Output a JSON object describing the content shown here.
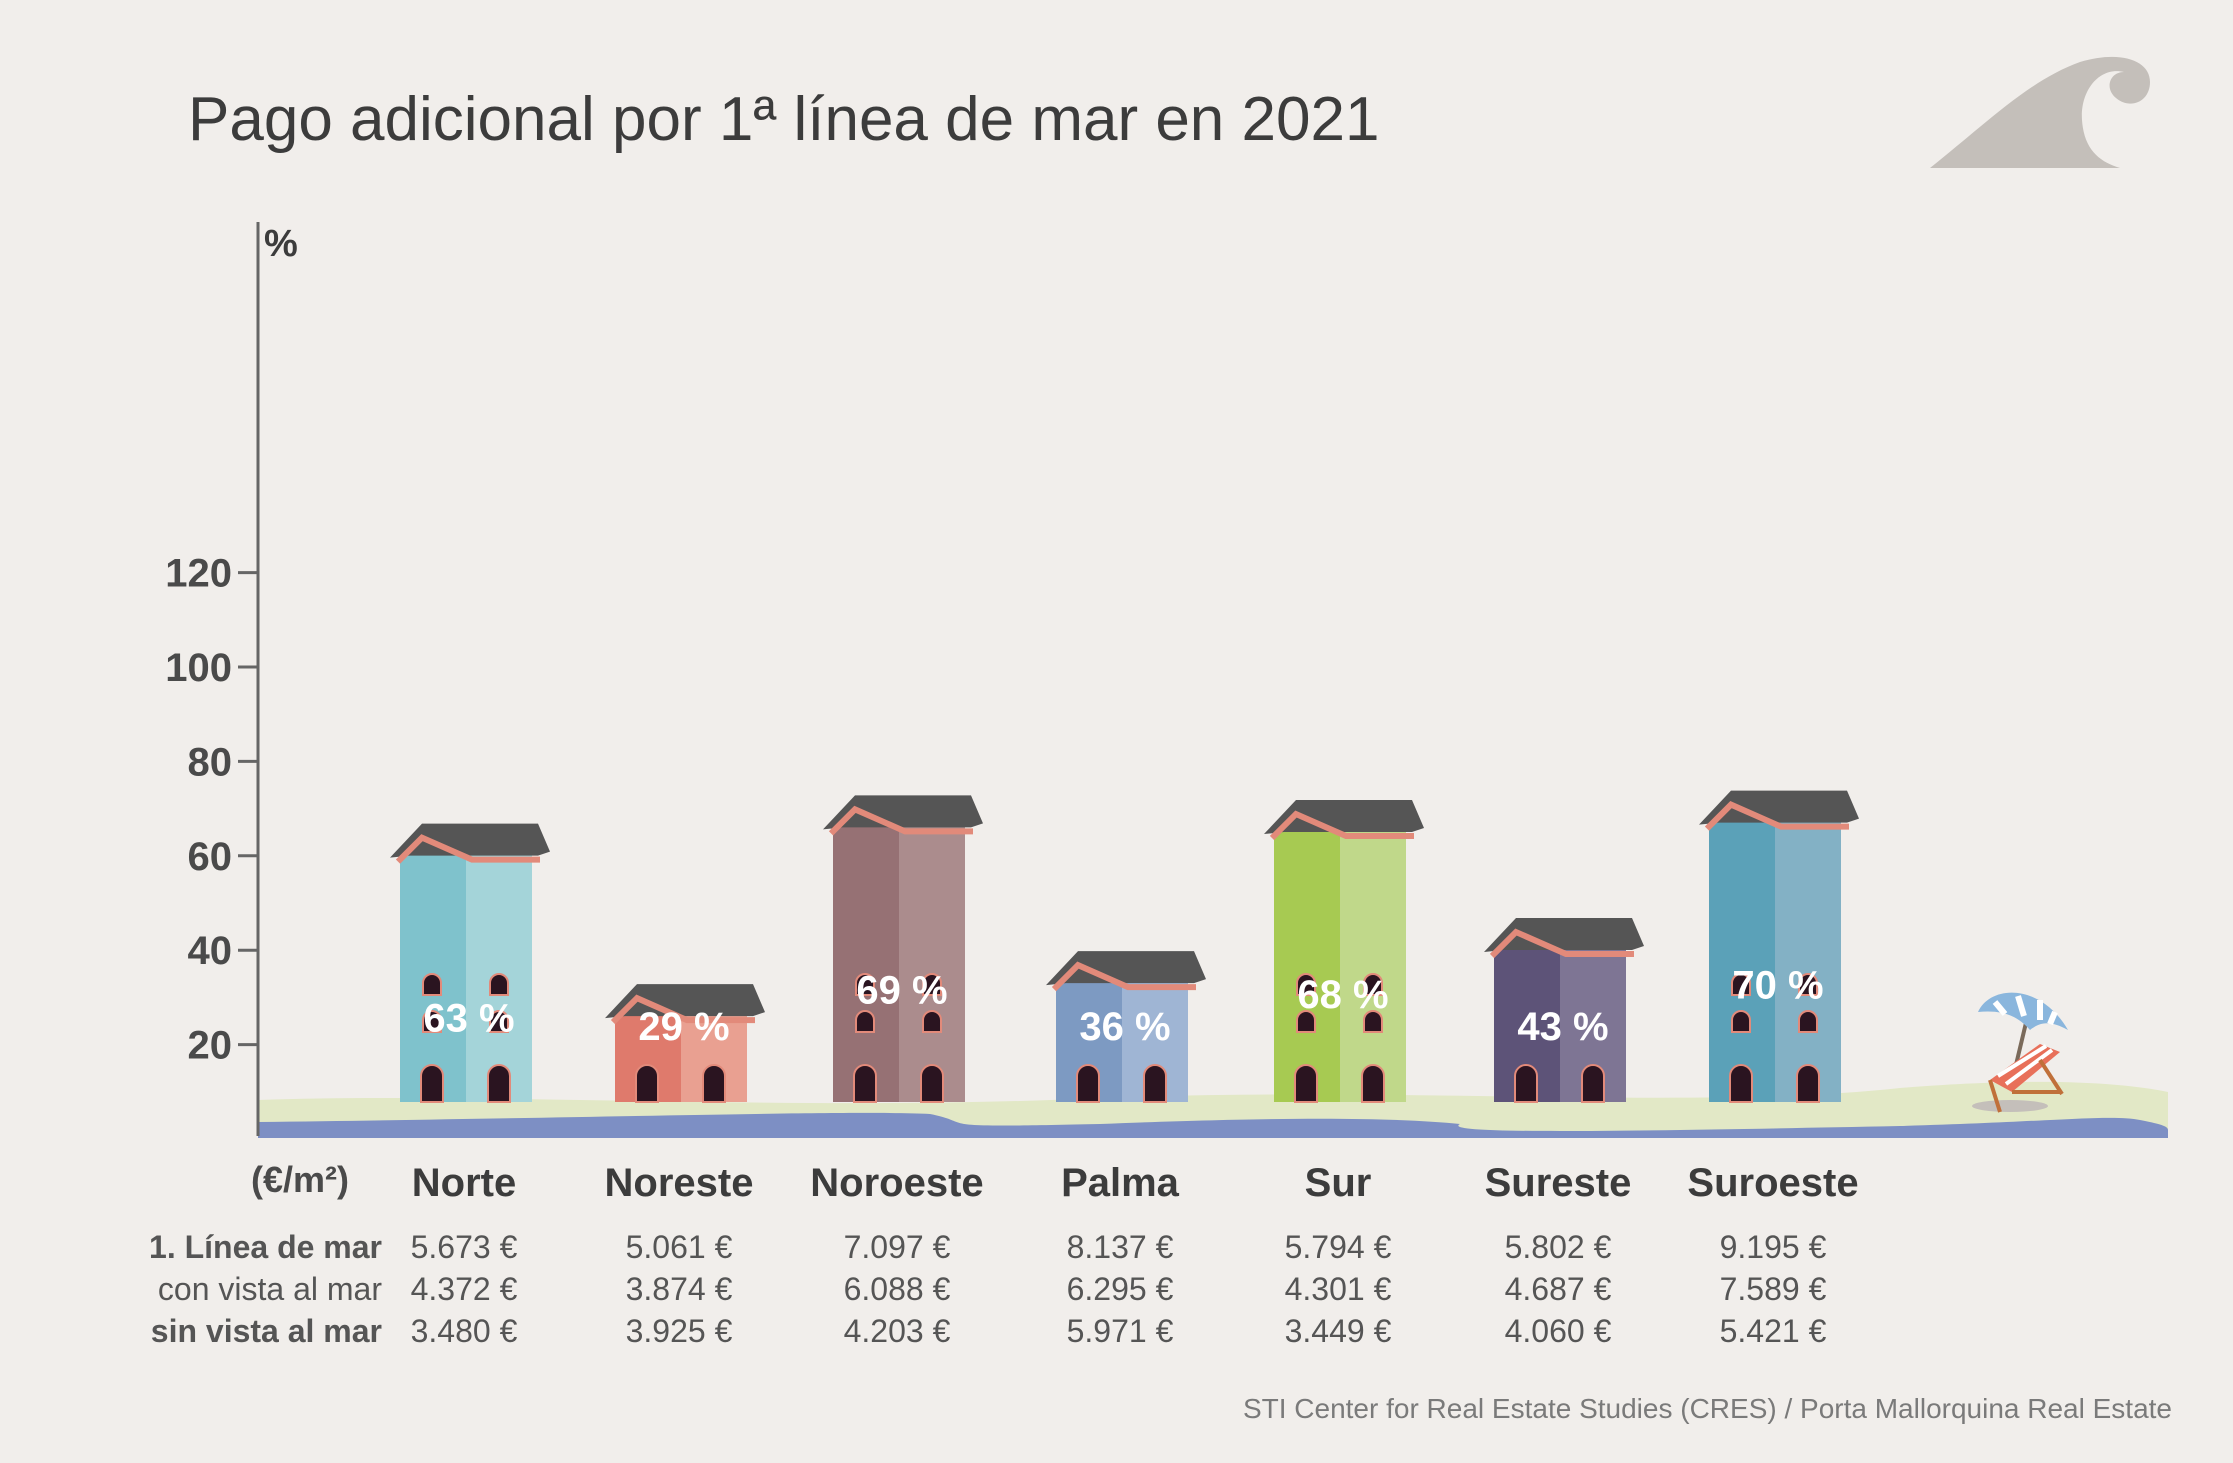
{
  "chart_data": {
    "type": "bar",
    "title": "Pago adicional por 1ª línea de mar en 2021",
    "ylabel": "%",
    "ylim": [
      0,
      130
    ],
    "yticks": [
      20,
      40,
      60,
      80,
      100,
      120
    ],
    "categories": [
      "Norte",
      "Noreste",
      "Noroeste",
      "Palma",
      "Sur",
      "Sureste",
      "Suroeste"
    ],
    "values": [
      63,
      29,
      69,
      36,
      68,
      43,
      70
    ],
    "value_labels": [
      "63 %",
      "29 %",
      "69 %",
      "36 %",
      "68 %",
      "43 %",
      "70 %"
    ],
    "bar_colors": [
      {
        "dark": "#7fc2cc",
        "light": "#a4d4d9"
      },
      {
        "dark": "#df7a6c",
        "light": "#e9a091"
      },
      {
        "dark": "#967174",
        "light": "#ab8c8d"
      },
      {
        "dark": "#7d9ac2",
        "light": "#9fb5d4"
      },
      {
        "dark": "#a7ca52",
        "light": "#c0d88a"
      },
      {
        "dark": "#5d5378",
        "light": "#7e7594"
      },
      {
        "dark": "#5ba1b8",
        "light": "#83b1c5"
      }
    ],
    "price_unit": "(€/m²)",
    "price_rows": [
      {
        "label": "1. Línea de mar",
        "values": [
          "5.673 €",
          "5.061 €",
          "7.097 €",
          "8.137 €",
          "5.794 €",
          "5.802 €",
          "9.195 €"
        ]
      },
      {
        "label": "con vista al mar",
        "values": [
          "4.372 €",
          "3.874 €",
          "6.088 €",
          "6.295 €",
          "4.301 €",
          "4.687 €",
          "7.589 €"
        ]
      },
      {
        "label": "sin vista al mar",
        "values": [
          "3.480 €",
          "3.925 €",
          "4.203 €",
          "5.971 €",
          "3.449 €",
          "4.060 €",
          "5.421 €"
        ]
      }
    ],
    "source": "STI Center for Real Estate Studies (CRES) / Porta Mallorquina Real Estate"
  },
  "colors": {
    "background": "#f1eeeb",
    "roof": "#555555",
    "roof_trim": "#e28a7a",
    "window": "#2a1420",
    "sand": "#e2e8c6",
    "sea": "#7d8fc4",
    "wave": "#c4bfba",
    "axis": "#666666"
  },
  "icons": [
    "wave-icon",
    "beach-umbrella-icon",
    "deck-chair-icon"
  ]
}
